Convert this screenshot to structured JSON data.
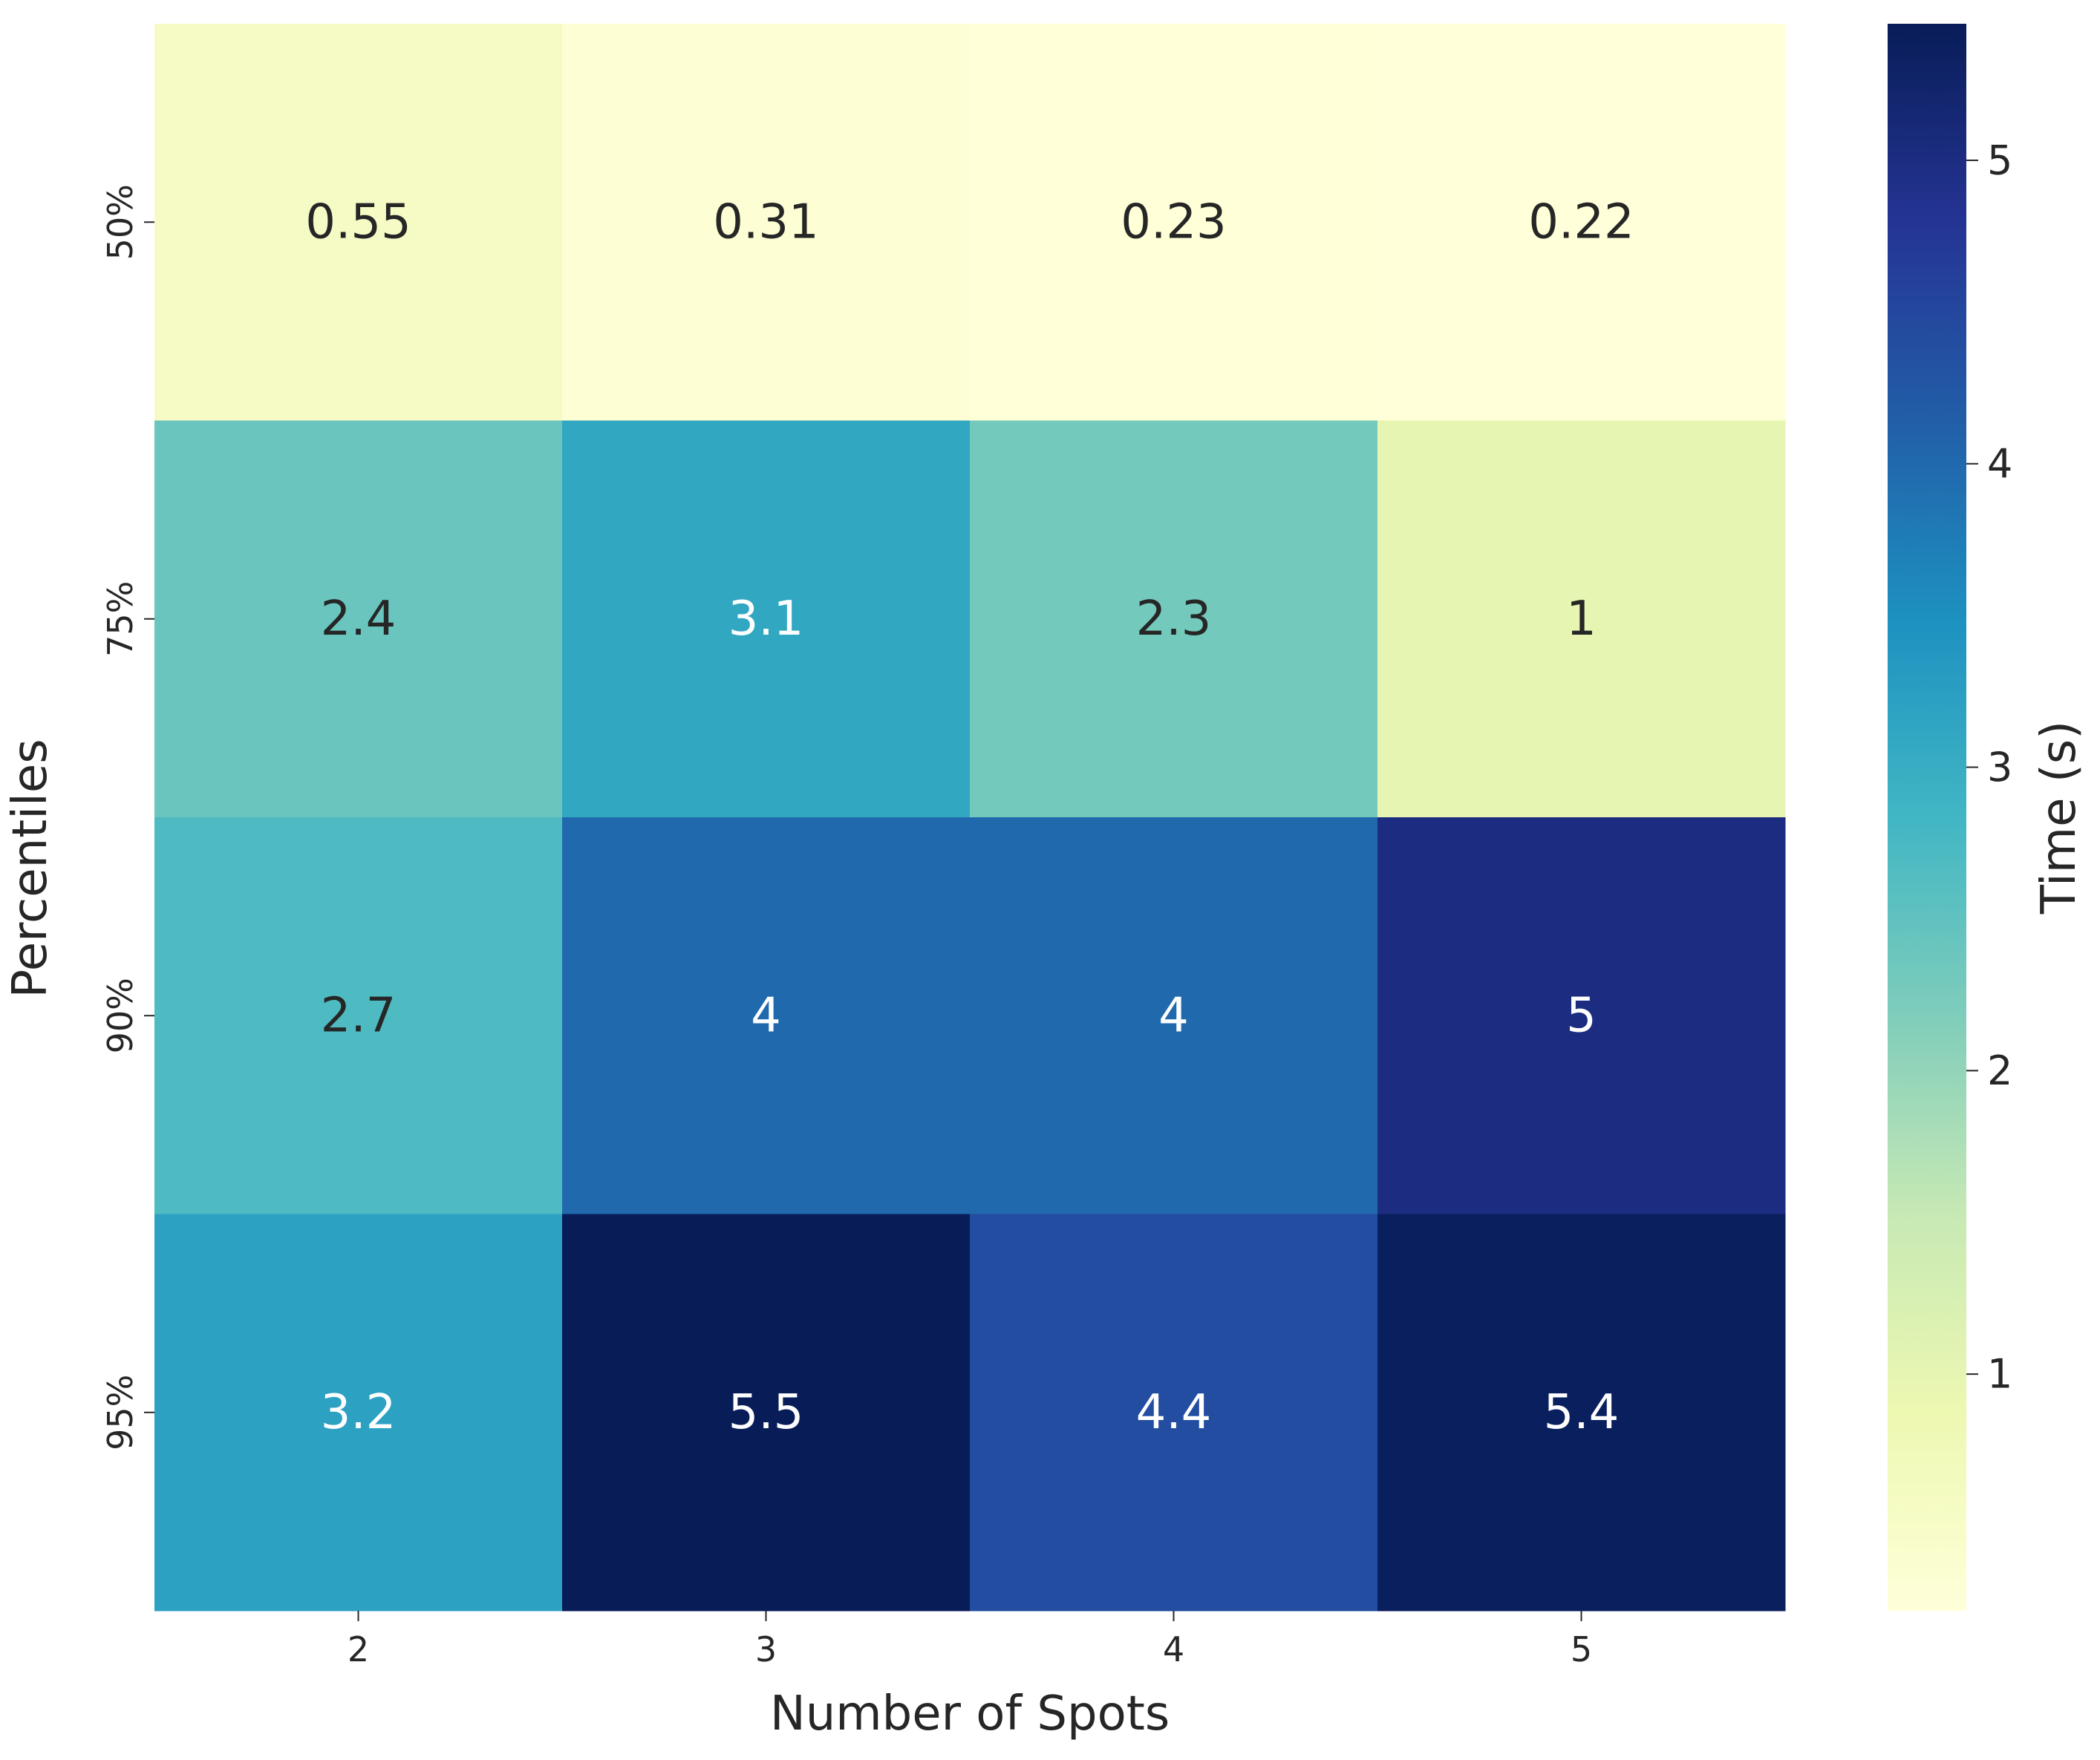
{
  "chart_data": {
    "type": "heatmap",
    "title": "",
    "xlabel": "Number of Spots",
    "ylabel": "Percentiles",
    "x_categories": [
      "2",
      "3",
      "4",
      "5"
    ],
    "y_categories": [
      "50%",
      "75%",
      "90%",
      "95%"
    ],
    "values": [
      [
        0.55,
        0.31,
        0.23,
        0.22
      ],
      [
        2.4,
        3.1,
        2.3,
        1.0
      ],
      [
        2.7,
        4.0,
        4.0,
        5.0
      ],
      [
        3.2,
        5.5,
        4.4,
        5.4
      ]
    ],
    "value_labels": [
      [
        "0.55",
        "0.31",
        "0.23",
        "0.22"
      ],
      [
        "2.4",
        "3.1",
        "2.3",
        "1"
      ],
      [
        "2.7",
        "4",
        "4",
        "5"
      ],
      [
        "3.2",
        "5.5",
        "4.4",
        "5.4"
      ]
    ],
    "colormap": "YlGnBu",
    "colormap_stops": [
      "#ffffd9",
      "#edf8b1",
      "#c7e9b4",
      "#7fcdbb",
      "#41b6c4",
      "#1d91c0",
      "#225ea8",
      "#253494",
      "#081d58"
    ],
    "colorbar": {
      "label": "Time (s)",
      "range": [
        0.22,
        5.45
      ],
      "ticks": [
        1,
        2,
        3,
        4,
        5
      ],
      "tick_labels": [
        "1",
        "2",
        "3",
        "4",
        "5"
      ]
    },
    "annotation_colors": {
      "dark_text": "#262626",
      "light_text": "#ffffff"
    }
  }
}
